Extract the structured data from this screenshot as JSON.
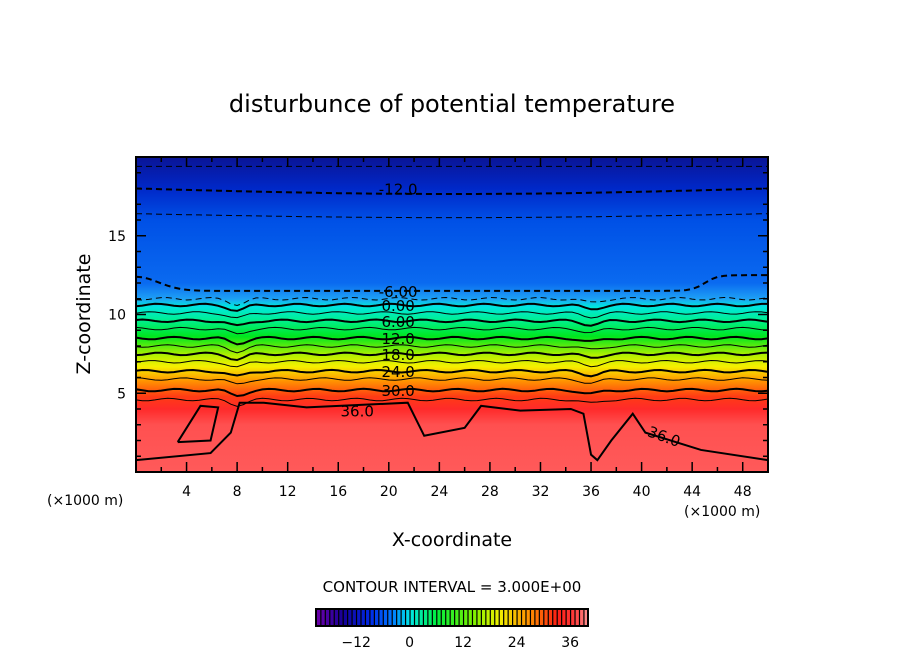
{
  "chart_data": {
    "type": "heatmap",
    "subtype": "filled-contour",
    "title": "disturbunce of potential temperature",
    "xlabel": "X-coordinate",
    "ylabel": "Z-coordinate",
    "x_unit_left": "(×1000 m)",
    "x_unit_right": "(×1000 m)",
    "xlim": [
      0,
      50
    ],
    "ylim": [
      0,
      20
    ],
    "xticks": [
      4,
      8,
      12,
      16,
      20,
      24,
      28,
      32,
      36,
      40,
      44,
      48
    ],
    "yticks": [
      5,
      10,
      15
    ],
    "contour_interval_text": "CONTOUR INTERVAL = 3.000E+00",
    "contour_interval": 3,
    "colorbar": {
      "range": [
        -21,
        40
      ],
      "tick_labels": [
        "-12",
        "0",
        "12",
        "24",
        "36"
      ],
      "tick_values": [
        -12,
        0,
        12,
        24,
        36
      ]
    },
    "color_stops": [
      {
        "z": 20,
        "color": "#0a1496"
      },
      {
        "z": 18,
        "color": "#0028c8"
      },
      {
        "z": 16,
        "color": "#0050e6"
      },
      {
        "z": 12,
        "color": "#0a6af0"
      },
      {
        "z": 11,
        "color": "#1ea0f5"
      },
      {
        "z": 10.5,
        "color": "#00e6e0"
      },
      {
        "z": 9.6,
        "color": "#00f08c"
      },
      {
        "z": 8.6,
        "color": "#00e61e"
      },
      {
        "z": 7.4,
        "color": "#b4f000"
      },
      {
        "z": 6.7,
        "color": "#f5f000"
      },
      {
        "z": 5.8,
        "color": "#ff9600"
      },
      {
        "z": 4.8,
        "color": "#ff3c14"
      },
      {
        "z": 4.0,
        "color": "#ff2a2a"
      },
      {
        "z": 3.0,
        "color": "#ff5050"
      },
      {
        "z": 0,
        "color": "#ff5a5a"
      }
    ],
    "contours": [
      {
        "level": -15,
        "z": 19.4,
        "dashed": true
      },
      {
        "level": -12,
        "z": 18.0,
        "dashed": true,
        "label": "-12.0",
        "label_x": 19
      },
      {
        "level": -9,
        "z": 16.4,
        "dashed": true
      },
      {
        "level": -6,
        "z": 11.5,
        "dashed": true,
        "label": "-6.00",
        "label_x": 19
      },
      {
        "level": -3,
        "z": 11.0,
        "dashed": true
      },
      {
        "level": 0,
        "z": 10.6,
        "label": "0.00",
        "label_x": 19
      },
      {
        "level": 3,
        "z": 10.1
      },
      {
        "level": 6,
        "z": 9.6,
        "label": "6.00",
        "label_x": 19
      },
      {
        "level": 9,
        "z": 9.1
      },
      {
        "level": 12,
        "z": 8.5,
        "label": "12.0",
        "label_x": 19
      },
      {
        "level": 15,
        "z": 8.0
      },
      {
        "level": 18,
        "z": 7.5,
        "label": "18.0",
        "label_x": 19
      },
      {
        "level": 21,
        "z": 7.0
      },
      {
        "level": 24,
        "z": 6.4,
        "label": "24.0",
        "label_x": 19
      },
      {
        "level": 27,
        "z": 5.9
      },
      {
        "level": 30,
        "z": 5.2,
        "label": "30.0",
        "label_x": 19
      },
      {
        "level": 33,
        "z": 4.6
      }
    ],
    "contour_36": {
      "label": "36.0",
      "main": [
        [
          0,
          0.75
        ],
        [
          5.9,
          1.2
        ],
        [
          7.5,
          2.5
        ],
        [
          8.2,
          4.4
        ],
        [
          10.1,
          4.4
        ],
        [
          13.5,
          4.1
        ],
        [
          21.5,
          4.4
        ],
        [
          22.8,
          2.3
        ],
        [
          26,
          2.8
        ],
        [
          27.3,
          4.2
        ],
        [
          30.4,
          3.9
        ],
        [
          34.4,
          4.0
        ],
        [
          35.4,
          3.7
        ],
        [
          36,
          1.1
        ],
        [
          36.5,
          0.75
        ],
        [
          37.6,
          2.0
        ],
        [
          39.3,
          3.7
        ],
        [
          40.3,
          2.5
        ],
        [
          44.7,
          1.4
        ],
        [
          50,
          0.75
        ]
      ],
      "loop": [
        [
          3.3,
          1.9
        ],
        [
          5.1,
          4.2
        ],
        [
          6.5,
          4.1
        ],
        [
          5.9,
          2.0
        ],
        [
          3.3,
          1.9
        ]
      ]
    }
  }
}
